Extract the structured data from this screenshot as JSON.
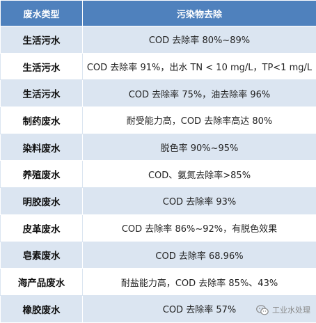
{
  "table": {
    "headers": [
      "废水类型",
      "污染物去除"
    ],
    "rows": [
      {
        "type": "生活污水",
        "removal": "COD 去除率 80%~89%"
      },
      {
        "type": "生活污水",
        "removal": "COD 去除率 91%，出水 TN < 10 mg/L，TP<1 mg/L"
      },
      {
        "type": "生活污水",
        "removal": "COD 去除率 75%，油去除率 96%"
      },
      {
        "type": "制药废水",
        "removal": "耐受能力高，COD 去除率高达 80%"
      },
      {
        "type": "染料废水",
        "removal": "脱色率 90%~95%"
      },
      {
        "type": "养殖废水",
        "removal": "COD、氨氮去除率>85%"
      },
      {
        "type": "明胶废水",
        "removal": "COD 去除率 93%"
      },
      {
        "type": "皮革废水",
        "removal": "COD 去除率 86%~92%，有脱色效果"
      },
      {
        "type": "皂素废水",
        "removal": "COD 去除率 68.96%"
      },
      {
        "type": "海产品废水",
        "removal": "耐盐能力高，COD 去除率 85%、43%"
      },
      {
        "type": "橡胶废水",
        "removal": "COD 去除率 57%"
      }
    ]
  },
  "watermark": {
    "text": "工业水处理",
    "icon": "wechat-icon"
  },
  "colors": {
    "header": "#4f81bd",
    "band": "#dbe5f1"
  }
}
